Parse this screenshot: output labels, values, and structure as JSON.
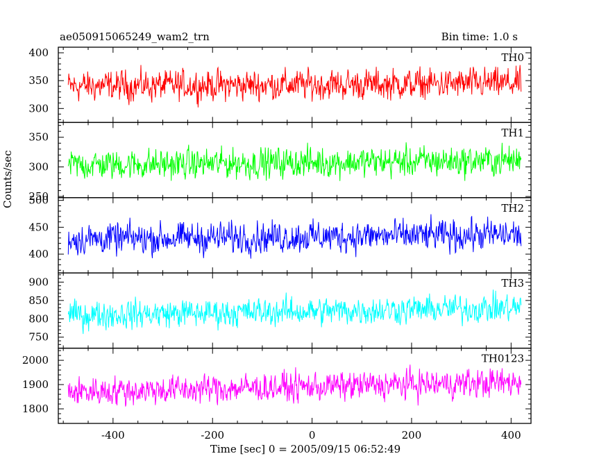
{
  "header": {
    "title": "ae050915065249_wam2_trn",
    "bin_time": "Bin time: 1.0 s"
  },
  "chart_data": {
    "type": "line",
    "ylabel": "Counts/sec",
    "xlabel": "Time [sec] 0 = 2005/09/15 06:52:49",
    "xlim": [
      -510,
      440
    ],
    "x_range": [
      -490,
      420
    ],
    "x_ticks": [
      -400,
      -200,
      0,
      200,
      400
    ],
    "panels": [
      {
        "name": "TH0",
        "color": "#ff0000",
        "ylim": [
          275,
          410
        ],
        "yticks": [
          300,
          350,
          400
        ],
        "mean": 340,
        "amplitude": 30,
        "trend": 5
      },
      {
        "name": "TH1",
        "color": "#00ff00",
        "ylim": [
          248,
          375
        ],
        "yticks": [
          250,
          300,
          350
        ],
        "mean": 303,
        "amplitude": 28,
        "trend": 8
      },
      {
        "name": "TH2",
        "color": "#0000ff",
        "ylim": [
          365,
          505
        ],
        "yticks": [
          400,
          450,
          500
        ],
        "mean": 428,
        "amplitude": 32,
        "trend": 8
      },
      {
        "name": "TH3",
        "color": "#00ffff",
        "ylim": [
          720,
          925
        ],
        "yticks": [
          750,
          800,
          850,
          900
        ],
        "mean": 810,
        "amplitude": 42,
        "trend": 20
      },
      {
        "name": "TH0123",
        "color": "#ff00ff",
        "ylim": [
          1740,
          2050
        ],
        "yticks": [
          1800,
          1900,
          2000
        ],
        "mean": 1870,
        "amplitude": 65,
        "trend": 40
      }
    ]
  }
}
